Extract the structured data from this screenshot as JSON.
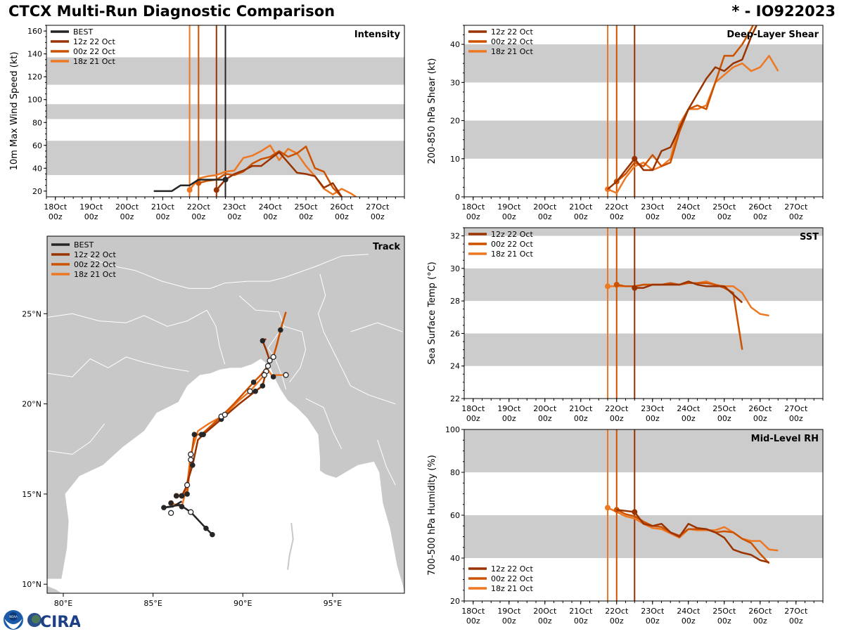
{
  "header": {
    "title": "CTCX Multi-Run Diagnostic Comparison",
    "storm_id": "* - IO922023"
  },
  "colors": {
    "BEST": "#262626",
    "12z 22 Oct": "#993300",
    "00z 22 Oct": "#cc5200",
    "18z 21 Oct": "#ee7722",
    "band": "#cccccc",
    "land": "#c8c8c8",
    "ocean": "#ffffff"
  },
  "logos": {
    "noaa": "NOAA",
    "cira": "CIRA"
  },
  "time_axis": {
    "tick_labels": [
      "18Oct\n00z",
      "19Oct\n00z",
      "20Oct\n00z",
      "21Oct\n00z",
      "22Oct\n00z",
      "23Oct\n00z",
      "24Oct\n00z",
      "25Oct\n00z",
      "26Oct\n00z",
      "27Oct\n00z"
    ],
    "tick_days": [
      18,
      19,
      20,
      21,
      22,
      23,
      24,
      25,
      26,
      27
    ],
    "range_days": [
      17.75,
      27.75
    ]
  },
  "chart_data": [
    {
      "id": "intensity",
      "type": "line",
      "title": "Intensity",
      "xlabel": "",
      "ylabel": "10m Max Wind Speed (kt)",
      "ylim": [
        15,
        165
      ],
      "yticks": [
        20,
        40,
        60,
        80,
        100,
        120,
        140,
        160
      ],
      "bands": [
        [
          34,
          64
        ],
        [
          83,
          96
        ],
        [
          113,
          137
        ]
      ],
      "init_lines": [
        {
          "run": "18z 21 Oct",
          "day": 21.75
        },
        {
          "run": "00z 22 Oct",
          "day": 22.0
        },
        {
          "run": "12z 22 Oct",
          "day": 22.5
        },
        {
          "run": "BEST",
          "day": 22.75
        }
      ],
      "legend": [
        "BEST",
        "12z 22 Oct",
        "00z 22 Oct",
        "18z 21 Oct"
      ],
      "legend_loc": "upper-left",
      "series": [
        {
          "name": "BEST",
          "x": [
            20.75,
            21.0,
            21.25,
            21.5,
            21.75,
            22.0,
            22.25,
            22.5,
            22.75
          ],
          "y": [
            20,
            20,
            20,
            25,
            25,
            30,
            30,
            30,
            30
          ],
          "marker_at": 22.75
        },
        {
          "name": "12z 22 Oct",
          "x": [
            22.5,
            22.75,
            23.0,
            23.25,
            23.5,
            23.75,
            24.0,
            24.25,
            24.5,
            24.75,
            25.0,
            25.25,
            25.5,
            25.75,
            26.0
          ],
          "y": [
            21,
            30,
            35,
            38,
            42,
            42,
            48,
            54,
            45,
            36,
            35,
            33,
            23,
            27,
            15
          ],
          "marker_at": 22.5
        },
        {
          "name": "00z 22 Oct",
          "x": [
            22.0,
            22.25,
            22.5,
            22.75,
            23.0,
            23.25,
            23.5,
            23.75,
            24.0,
            24.25,
            24.5,
            24.75,
            25.0,
            25.25,
            25.5,
            25.75,
            26.0
          ],
          "y": [
            27,
            29,
            30,
            35,
            34,
            37,
            44,
            48,
            50,
            55,
            50,
            53,
            59,
            40,
            37,
            23,
            15
          ],
          "marker_at": 22.0
        },
        {
          "name": "18z 21 Oct",
          "x": [
            21.75,
            22.0,
            22.25,
            22.5,
            22.75,
            23.0,
            23.25,
            23.5,
            23.75,
            24.0,
            24.25,
            24.5,
            24.75,
            25.0,
            25.25,
            25.5,
            25.75,
            26.0,
            26.25,
            26.4
          ],
          "y": [
            21,
            31,
            33,
            34,
            37,
            38,
            49,
            51,
            55,
            60,
            47,
            57,
            53,
            42,
            33,
            22,
            17,
            22,
            18,
            15
          ],
          "marker_at": 21.75
        }
      ]
    },
    {
      "id": "shear",
      "type": "line",
      "title": "Deep-Layer Shear",
      "xlabel": "",
      "ylabel": "200-850 hPa Shear (kt)",
      "ylim": [
        0,
        45
      ],
      "yticks": [
        0,
        10,
        20,
        30,
        40
      ],
      "bands": [
        [
          10,
          20
        ],
        [
          30,
          40
        ]
      ],
      "init_lines": [
        {
          "run": "18z 21 Oct",
          "day": 21.75
        },
        {
          "run": "00z 22 Oct",
          "day": 22.0
        },
        {
          "run": "12z 22 Oct",
          "day": 22.5
        }
      ],
      "legend": [
        "12z 22 Oct",
        "00z 22 Oct",
        "18z 21 Oct"
      ],
      "legend_loc": "upper-left",
      "series": [
        {
          "name": "12z 22 Oct",
          "x": [
            21.75,
            22.0,
            22.25,
            22.5,
            22.75,
            23.0,
            23.25,
            23.5,
            23.75,
            24.0,
            24.25,
            24.5,
            24.75,
            25.0,
            25.25,
            25.5,
            25.75,
            25.95
          ],
          "y": [
            2,
            4,
            7,
            10,
            7,
            7,
            12,
            13,
            18,
            23,
            27,
            31,
            34,
            33,
            35,
            36,
            42,
            46
          ],
          "marker_at": 22.5
        },
        {
          "name": "00z 22 Oct",
          "x": [
            22.0,
            22.25,
            22.5,
            22.75,
            23.0,
            23.25,
            23.5,
            23.75,
            24.0,
            24.25,
            24.5,
            24.75,
            25.0,
            25.25,
            25.5,
            25.75,
            25.85
          ],
          "y": [
            4,
            6,
            9,
            8,
            11,
            8,
            9,
            17,
            23,
            24,
            23,
            30,
            37,
            37,
            40,
            44,
            46
          ],
          "marker_at": 22.0
        },
        {
          "name": "18z 21 Oct",
          "x": [
            21.75,
            22.0,
            22.25,
            22.5,
            22.75,
            23.0,
            23.25,
            23.5,
            23.75,
            24.0,
            24.25,
            24.5,
            24.75,
            25.0,
            25.25,
            25.5,
            25.75,
            26.0,
            26.25,
            26.5
          ],
          "y": [
            2,
            1,
            5,
            8,
            9,
            7,
            8,
            10,
            19,
            23,
            23,
            24,
            30,
            32,
            34,
            35,
            33,
            34,
            37,
            33
          ],
          "marker_at": 21.75
        }
      ]
    },
    {
      "id": "sst",
      "type": "line",
      "title": "SST",
      "xlabel": "",
      "ylabel": "Sea Surface Temp (°C)",
      "ylim": [
        22,
        32.5
      ],
      "yticks": [
        22,
        24,
        26,
        28,
        30,
        32
      ],
      "bands": [
        [
          24,
          26
        ],
        [
          28,
          30
        ],
        [
          32,
          33
        ]
      ],
      "init_lines": [
        {
          "run": "18z 21 Oct",
          "day": 21.75
        },
        {
          "run": "00z 22 Oct",
          "day": 22.0
        },
        {
          "run": "12z 22 Oct",
          "day": 22.5
        }
      ],
      "legend": [
        "12z 22 Oct",
        "00z 22 Oct",
        "18z 21 Oct"
      ],
      "legend_loc": "upper-left",
      "series": [
        {
          "name": "12z 22 Oct",
          "x": [
            22.5,
            22.75,
            23.0,
            23.25,
            23.5,
            23.75,
            24.0,
            24.25,
            24.5,
            24.75,
            25.0,
            25.25,
            25.5
          ],
          "y": [
            28.8,
            28.8,
            29.0,
            29.0,
            29.0,
            29.0,
            29.2,
            29.0,
            28.9,
            28.9,
            28.9,
            28.4,
            27.9
          ],
          "marker_at": 22.5
        },
        {
          "name": "00z 22 Oct",
          "x": [
            22.0,
            22.25,
            22.5,
            22.75,
            23.0,
            23.25,
            23.5,
            23.75,
            24.0,
            24.25,
            24.5,
            24.75,
            25.0,
            25.25,
            25.5
          ],
          "y": [
            29.0,
            28.9,
            28.9,
            29.0,
            29.0,
            29.0,
            29.1,
            29.0,
            29.1,
            29.1,
            29.1,
            29.0,
            28.8,
            28.5,
            25.0
          ],
          "marker_at": 22.0
        },
        {
          "name": "18z 21 Oct",
          "x": [
            21.75,
            22.0,
            22.25,
            22.5,
            22.75,
            23.0,
            23.25,
            23.5,
            23.75,
            24.0,
            24.25,
            24.5,
            24.75,
            25.0,
            25.25,
            25.5,
            25.75,
            26.0,
            26.25
          ],
          "y": [
            28.9,
            28.9,
            28.9,
            28.9,
            29.0,
            29.0,
            29.0,
            29.0,
            29.0,
            29.1,
            29.1,
            29.2,
            29.0,
            28.9,
            28.9,
            28.5,
            27.6,
            27.2,
            27.1
          ],
          "marker_at": 21.75
        }
      ]
    },
    {
      "id": "rh",
      "type": "line",
      "title": "Mid-Level RH",
      "xlabel": "",
      "ylabel": "700-500 hPa Humidity (%)",
      "ylim": [
        20,
        100
      ],
      "yticks": [
        20,
        40,
        60,
        80,
        100
      ],
      "bands": [
        [
          40,
          60
        ],
        [
          80,
          100
        ]
      ],
      "init_lines": [
        {
          "run": "18z 21 Oct",
          "day": 21.75
        },
        {
          "run": "00z 22 Oct",
          "day": 22.0
        },
        {
          "run": "12z 22 Oct",
          "day": 22.5
        }
      ],
      "legend": [
        "12z 22 Oct",
        "00z 22 Oct",
        "18z 21 Oct"
      ],
      "legend_loc": "lower-left",
      "series": [
        {
          "name": "12z 22 Oct",
          "x": [
            22.0,
            22.25,
            22.5,
            22.75,
            23.0,
            23.25,
            23.5,
            23.75,
            24.0,
            24.25,
            24.5,
            24.75,
            25.0,
            25.25,
            25.5,
            25.75,
            26.0,
            26.25
          ],
          "y": [
            62.5,
            62,
            61.5,
            56,
            55,
            56,
            52,
            50,
            56,
            54,
            53.5,
            52,
            49.5,
            44,
            42.5,
            41.5,
            39,
            38
          ],
          "marker_at": 22.5
        },
        {
          "name": "00z 22 Oct",
          "x": [
            22.0,
            22.25,
            22.5,
            22.75,
            23.0,
            23.25,
            23.5,
            23.75,
            24.0,
            24.25,
            24.5,
            24.75,
            25.0,
            25.25,
            25.5,
            25.75,
            26.0,
            26.25
          ],
          "y": [
            62.5,
            60.5,
            59.5,
            57,
            55,
            54.5,
            52,
            50.5,
            53.5,
            53.5,
            53.5,
            52,
            52.5,
            52,
            49,
            47,
            42,
            37.5
          ],
          "marker_at": 22.0
        },
        {
          "name": "18z 21 Oct",
          "x": [
            21.75,
            22.0,
            22.25,
            22.5,
            22.75,
            23.0,
            23.25,
            23.5,
            23.75,
            24.0,
            24.25,
            24.5,
            24.75,
            25.0,
            25.25,
            25.5,
            25.75,
            26.0,
            26.25,
            26.5
          ],
          "y": [
            63.5,
            61.5,
            59.5,
            58.5,
            56,
            54,
            53.5,
            51.5,
            49.5,
            53.5,
            53,
            53,
            53,
            54.5,
            52,
            49,
            48,
            48,
            44,
            43.5
          ],
          "marker_at": 21.75
        }
      ]
    },
    {
      "id": "track",
      "type": "scatter",
      "title": "Track",
      "xlabel": "",
      "ylabel": "",
      "xlim": [
        79.1,
        99.0
      ],
      "ylim": [
        9.5,
        29.3
      ],
      "xticks": [
        80,
        85,
        90,
        95
      ],
      "xtick_labels": [
        "80°E",
        "85°E",
        "90°E",
        "95°E"
      ],
      "yticks": [
        10,
        15,
        20,
        25
      ],
      "ytick_labels": [
        "10°N",
        "15°N",
        "20°N",
        "25°N"
      ],
      "legend": [
        "BEST",
        "12z 22 Oct",
        "00z 22 Oct",
        "18z 21 Oct"
      ],
      "legend_loc": "upper-left",
      "series": [
        {
          "name": "BEST",
          "lon": [
            88.3,
            87.95,
            87.1,
            86.5,
            85.6,
            86.1,
            86.6
          ],
          "lat": [
            12.75,
            13.1,
            14.0,
            14.4,
            14.25,
            14.3,
            14.6
          ],
          "markers": [
            "filled",
            "filled",
            "open",
            "none",
            "filled",
            "none",
            "none"
          ]
        },
        {
          "name": "12z 22 Oct",
          "lon": [
            86.6,
            86.8,
            87.2,
            87.5,
            87.8,
            88.8,
            89.8,
            90.7,
            91.1,
            91.3,
            91.5,
            91.3,
            91.1,
            91.3
          ],
          "lat": [
            14.9,
            15.3,
            16.6,
            18.0,
            18.3,
            19.15,
            20.0,
            20.7,
            21.0,
            21.8,
            22.4,
            23.0,
            23.5,
            23.6
          ],
          "markers": [
            "filled",
            "none",
            "filled",
            "none",
            "filled",
            "filled",
            "none",
            "filled",
            "filled",
            "open",
            "open",
            "none",
            "filled",
            "none"
          ]
        },
        {
          "name": "00z 22 Oct",
          "lon": [
            86.3,
            86.9,
            87.1,
            87.3,
            87.7,
            88.8,
            89.5,
            90.6,
            91.0,
            91.4,
            91.7,
            91.9,
            92.1,
            92.4
          ],
          "lat": [
            14.9,
            15.0,
            16.9,
            18.3,
            18.3,
            19.3,
            20.0,
            21.2,
            21.6,
            22.1,
            22.6,
            23.3,
            24.1,
            25.1
          ],
          "markers": [
            "filled",
            "filled",
            "open",
            "filled",
            "filled",
            "open",
            "none",
            "filled",
            "none",
            "open",
            "open",
            "none",
            "filled",
            "none"
          ]
        },
        {
          "name": "18z 21 Oct",
          "lon": [
            86.0,
            86.6,
            86.9,
            87.1,
            87.5,
            88.1,
            89.0,
            89.8,
            90.4,
            91.2,
            91.4,
            91.6,
            92.4
          ],
          "lat": [
            14.5,
            14.3,
            15.5,
            17.2,
            18.5,
            18.9,
            19.4,
            20.2,
            20.7,
            21.6,
            21.9,
            21.6,
            21.6
          ],
          "markers": [
            "filled",
            "filled",
            "open",
            "open",
            "none",
            "none",
            "open",
            "none",
            "open",
            "open",
            "none",
            "none",
            "open"
          ]
        }
      ],
      "extra_points": [
        {
          "lon": 91.7,
          "lat": 21.5,
          "marker": "filled"
        },
        {
          "lon": 86.0,
          "lat": 13.95,
          "marker": "open"
        }
      ]
    }
  ]
}
